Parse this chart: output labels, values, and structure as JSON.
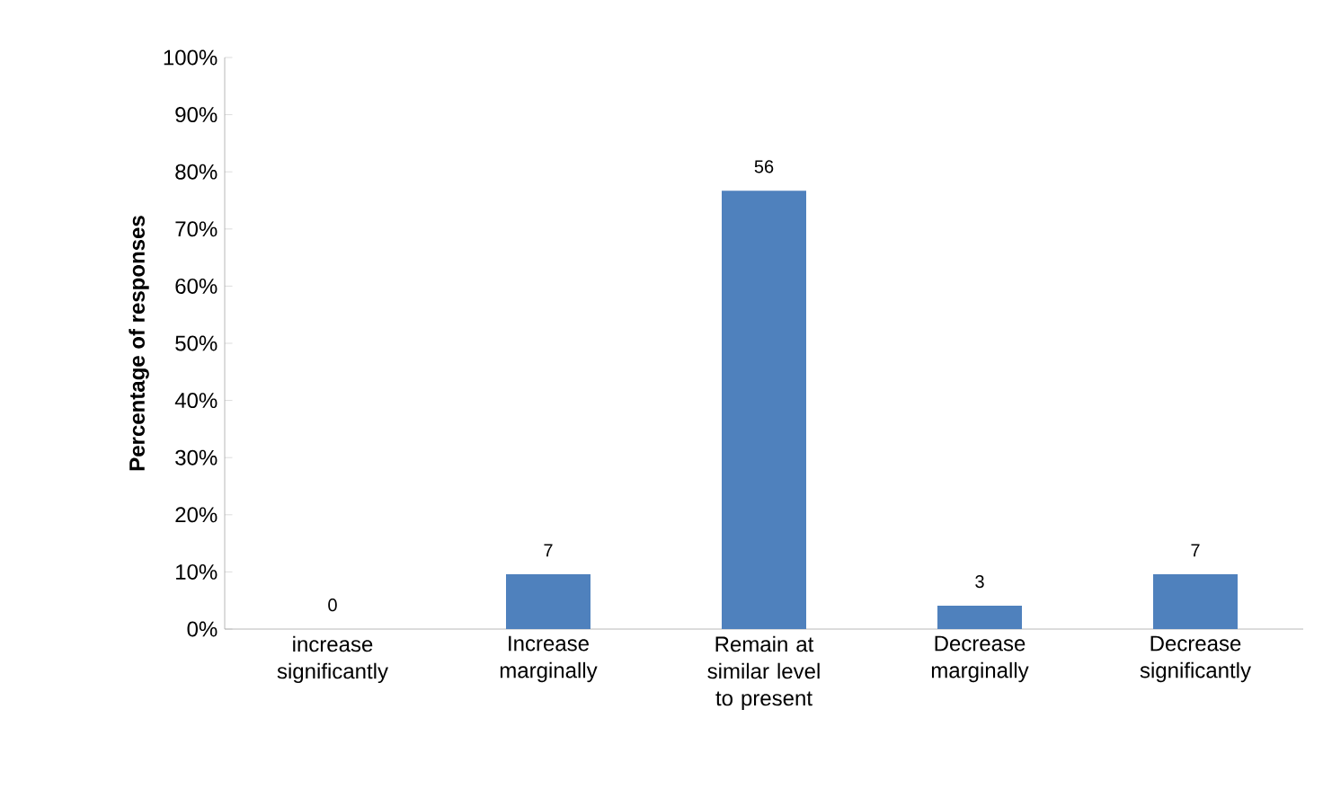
{
  "chart_data": {
    "type": "bar",
    "ylabel": "Percentage of responses",
    "categories": [
      "increase significantly",
      "Increase marginally",
      "Remain at similar level to present",
      "Decrease marginally",
      "Decrease significantly"
    ],
    "values": [
      0,
      9.6,
      76.7,
      4.1,
      9.6
    ],
    "annotations": [
      {
        "text": "0",
        "x": "increase significantly",
        "y": 0
      },
      {
        "text": "7",
        "x": "Increase marginally",
        "y": 9.6
      },
      {
        "text": "56",
        "x": "Remain at similar level to present",
        "y": 76.7
      },
      {
        "text": "3",
        "x": "Decrease marginally",
        "y": 4.1
      },
      {
        "text": "7",
        "x": "Decrease significantly",
        "y": 9.6
      }
    ],
    "color": "#4f81bd",
    "ylim": [
      0,
      100
    ],
    "yticks": [
      {
        "value": 0,
        "label": "0%"
      },
      {
        "value": 10,
        "label": "10%"
      },
      {
        "value": 20,
        "label": "20%"
      },
      {
        "value": 30,
        "label": "30%"
      },
      {
        "value": 40,
        "label": "40%"
      },
      {
        "value": 50,
        "label": "50%"
      },
      {
        "value": 60,
        "label": "60%"
      },
      {
        "value": 70,
        "label": "70%"
      },
      {
        "value": 80,
        "label": "80%"
      },
      {
        "value": 90,
        "label": "90%"
      },
      {
        "value": 100,
        "label": "100%"
      }
    ]
  }
}
